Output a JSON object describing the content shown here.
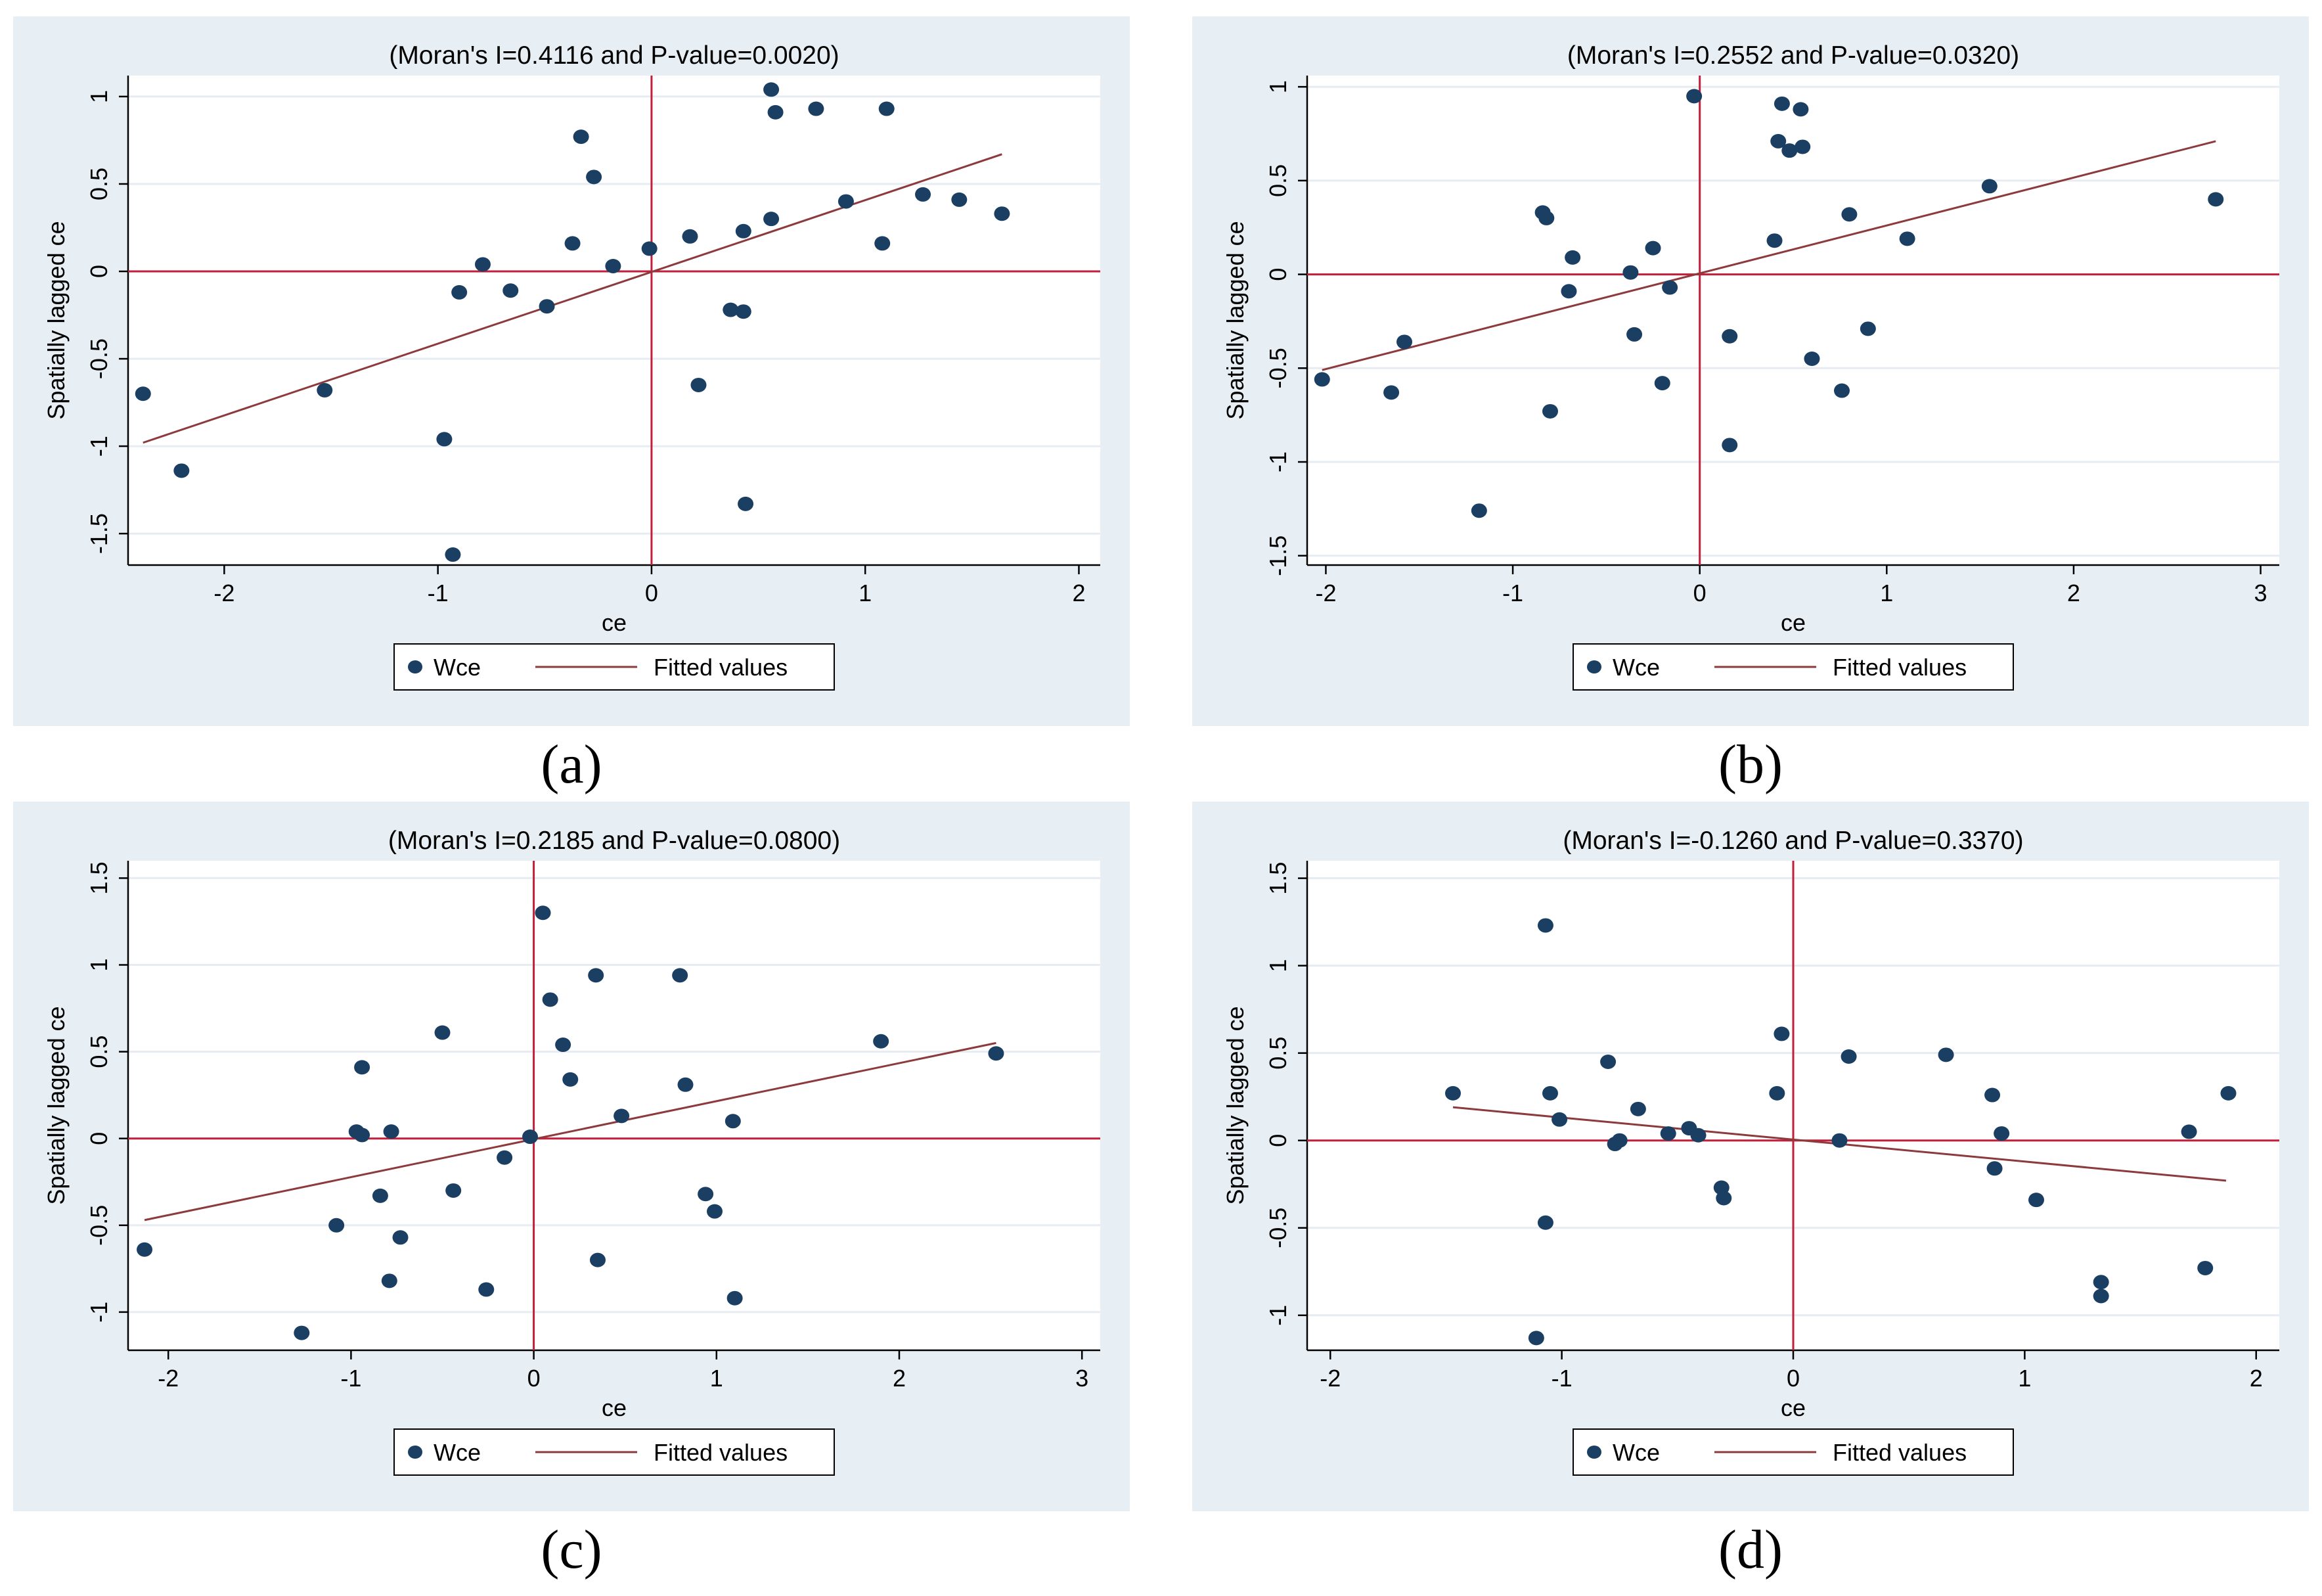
{
  "chart_data": [
    {
      "type": "scatter",
      "panel": "a",
      "caption": "(a)",
      "title": "(Moran's I=0.4116 and P-value=0.0020)",
      "xlabel": "ce",
      "ylabel": "Spatially lagged ce",
      "xlim": [
        -2.45,
        2.1
      ],
      "ylim": [
        -1.68,
        1.12
      ],
      "xticks": [
        -2,
        -1,
        0,
        1,
        2
      ],
      "xtick_labels": [
        "-2",
        "-1",
        "0",
        "1",
        "2"
      ],
      "yticks": [
        -1.5,
        -1,
        -0.5,
        0,
        0.5,
        1
      ],
      "ytick_labels": [
        "-1.5",
        "-1",
        "-0.5",
        "0",
        "0.5",
        "1"
      ],
      "legend": [
        "Wce",
        "Fitted values"
      ],
      "fit_line": {
        "x": [
          -2.38,
          1.64
        ],
        "y": [
          -0.98,
          0.67
        ]
      },
      "points": [
        [
          -2.38,
          -0.7
        ],
        [
          -2.2,
          -1.14
        ],
        [
          -1.53,
          -0.68
        ],
        [
          -0.97,
          -0.96
        ],
        [
          -0.93,
          -1.62
        ],
        [
          -0.9,
          -0.12
        ],
        [
          -0.79,
          0.04
        ],
        [
          -0.66,
          -0.11
        ],
        [
          -0.49,
          -0.2
        ],
        [
          -0.37,
          0.16
        ],
        [
          -0.33,
          0.77
        ],
        [
          -0.27,
          0.54
        ],
        [
          -0.18,
          0.03
        ],
        [
          -0.01,
          0.13
        ],
        [
          0.18,
          0.2
        ],
        [
          0.22,
          -0.65
        ],
        [
          0.37,
          -0.22
        ],
        [
          0.43,
          0.23
        ],
        [
          0.43,
          -0.23
        ],
        [
          0.44,
          -1.33
        ],
        [
          0.56,
          0.3
        ],
        [
          0.56,
          1.04
        ],
        [
          0.58,
          0.91
        ],
        [
          0.77,
          0.93
        ],
        [
          0.91,
          0.4
        ],
        [
          1.08,
          0.16
        ],
        [
          1.1,
          0.93
        ],
        [
          1.27,
          0.44
        ],
        [
          1.44,
          0.41
        ],
        [
          1.64,
          0.33
        ]
      ]
    },
    {
      "type": "scatter",
      "panel": "b",
      "caption": "(b)",
      "title": "(Moran's I=0.2552 and P-value=0.0320)",
      "xlabel": "ce",
      "ylabel": "Spatially lagged ce",
      "xlim": [
        -2.1,
        3.1
      ],
      "ylim": [
        -1.55,
        1.06
      ],
      "xticks": [
        -2,
        -1,
        0,
        1,
        2,
        3
      ],
      "xtick_labels": [
        "-2",
        "-1",
        "0",
        "1",
        "2",
        "3"
      ],
      "yticks": [
        -1.5,
        -1,
        -0.5,
        0,
        0.5,
        1
      ],
      "ytick_labels": [
        "-1.5",
        "-1",
        "-0.5",
        "0",
        "0.5",
        "1"
      ],
      "legend": [
        "Wce",
        "Fitted values"
      ],
      "fit_line": {
        "x": [
          -2.02,
          2.76
        ],
        "y": [
          -0.51,
          0.71
        ]
      },
      "points": [
        [
          -2.02,
          -0.56
        ],
        [
          -1.65,
          -0.63
        ],
        [
          -1.58,
          -0.36
        ],
        [
          -1.18,
          -1.26
        ],
        [
          -0.84,
          0.33
        ],
        [
          -0.82,
          0.3
        ],
        [
          -0.8,
          -0.73
        ],
        [
          -0.7,
          -0.09
        ],
        [
          -0.68,
          0.09
        ],
        [
          -0.37,
          0.01
        ],
        [
          -0.35,
          -0.32
        ],
        [
          -0.25,
          0.14
        ],
        [
          -0.2,
          -0.58
        ],
        [
          -0.16,
          -0.07
        ],
        [
          -0.03,
          0.95
        ],
        [
          0.16,
          -0.33
        ],
        [
          0.16,
          -0.91
        ],
        [
          0.4,
          0.18
        ],
        [
          0.42,
          0.71
        ],
        [
          0.44,
          0.91
        ],
        [
          0.48,
          0.66
        ],
        [
          0.54,
          0.88
        ],
        [
          0.55,
          0.68
        ],
        [
          0.6,
          -0.45
        ],
        [
          0.76,
          -0.62
        ],
        [
          0.8,
          0.32
        ],
        [
          0.9,
          -0.29
        ],
        [
          1.11,
          0.19
        ],
        [
          1.55,
          0.47
        ],
        [
          2.76,
          0.4
        ]
      ]
    },
    {
      "type": "scatter",
      "panel": "c",
      "caption": "(c)",
      "title": "(Moran's I=0.2185 and P-value=0.0800)",
      "xlabel": "ce",
      "ylabel": "Spatially lagged ce",
      "xlim": [
        -2.22,
        3.1
      ],
      "ylim": [
        -1.22,
        1.6
      ],
      "xticks": [
        -2,
        -1,
        0,
        1,
        2,
        3
      ],
      "xtick_labels": [
        "-2",
        "-1",
        "0",
        "1",
        "2",
        "3"
      ],
      "yticks": [
        -1,
        -0.5,
        0,
        0.5,
        1,
        1.5
      ],
      "ytick_labels": [
        "-1",
        "-0.5",
        "0",
        "0.5",
        "1",
        "1.5"
      ],
      "legend": [
        "Wce",
        "Fitted values"
      ],
      "fit_line": {
        "x": [
          -2.13,
          2.53
        ],
        "y": [
          -0.47,
          0.55
        ]
      },
      "points": [
        [
          -2.13,
          -0.64
        ],
        [
          -1.27,
          -1.12
        ],
        [
          -1.08,
          -0.5
        ],
        [
          -0.97,
          0.04
        ],
        [
          -0.94,
          0.41
        ],
        [
          -0.94,
          0.02
        ],
        [
          -0.84,
          -0.33
        ],
        [
          -0.79,
          -0.82
        ],
        [
          -0.78,
          0.04
        ],
        [
          -0.73,
          -0.57
        ],
        [
          -0.5,
          0.61
        ],
        [
          -0.44,
          -0.3
        ],
        [
          -0.26,
          -0.87
        ],
        [
          -0.16,
          -0.11
        ],
        [
          -0.02,
          0.01
        ],
        [
          0.05,
          1.3
        ],
        [
          0.09,
          0.8
        ],
        [
          0.16,
          0.54
        ],
        [
          0.2,
          0.34
        ],
        [
          0.34,
          0.94
        ],
        [
          0.35,
          -0.7
        ],
        [
          0.48,
          0.13
        ],
        [
          0.8,
          0.94
        ],
        [
          0.83,
          0.31
        ],
        [
          0.94,
          -0.32
        ],
        [
          0.99,
          -0.42
        ],
        [
          1.09,
          0.1
        ],
        [
          1.1,
          -0.92
        ],
        [
          1.9,
          0.56
        ],
        [
          2.53,
          0.49
        ]
      ]
    },
    {
      "type": "scatter",
      "panel": "d",
      "caption": "(d)",
      "title": "(Moran's I=-0.1260 and P-value=0.3370)",
      "xlabel": "ce",
      "ylabel": "Spatially lagged ce",
      "xlim": [
        -2.1,
        2.1
      ],
      "ylim": [
        -1.2,
        1.6
      ],
      "xticks": [
        -2,
        -1,
        0,
        1,
        2
      ],
      "xtick_labels": [
        "-2",
        "-1",
        "0",
        "1",
        "2"
      ],
      "yticks": [
        -1,
        -0.5,
        0,
        0.5,
        1,
        1.5
      ],
      "ytick_labels": [
        "-1",
        "-0.5",
        "0",
        "0.5",
        "1",
        "1.5"
      ],
      "legend": [
        "Wce",
        "Fitted values"
      ],
      "fit_line": {
        "x": [
          -1.47,
          1.87
        ],
        "y": [
          0.19,
          -0.23
        ]
      },
      "points": [
        [
          -1.47,
          0.27
        ],
        [
          -1.11,
          -1.13
        ],
        [
          -1.07,
          1.23
        ],
        [
          -1.07,
          -0.47
        ],
        [
          -1.05,
          0.27
        ],
        [
          -1.01,
          0.12
        ],
        [
          -0.8,
          0.45
        ],
        [
          -0.77,
          -0.02
        ],
        [
          -0.75,
          0.0
        ],
        [
          -0.67,
          0.18
        ],
        [
          -0.54,
          0.04
        ],
        [
          -0.45,
          0.07
        ],
        [
          -0.41,
          0.03
        ],
        [
          -0.31,
          -0.27
        ],
        [
          -0.3,
          -0.33
        ],
        [
          -0.07,
          0.27
        ],
        [
          -0.05,
          0.61
        ],
        [
          0.2,
          0.0
        ],
        [
          0.24,
          0.48
        ],
        [
          0.66,
          0.49
        ],
        [
          0.86,
          0.26
        ],
        [
          0.87,
          -0.16
        ],
        [
          0.9,
          0.04
        ],
        [
          1.05,
          -0.34
        ],
        [
          1.33,
          -0.81
        ],
        [
          1.33,
          -0.89
        ],
        [
          1.71,
          0.05
        ],
        [
          1.78,
          -0.73
        ],
        [
          1.88,
          0.27
        ]
      ]
    }
  ],
  "colors": {
    "panel_bg": "#e8eff4",
    "plot_bg": "#ffffff",
    "grid": "#e6ecf1",
    "marker": "#1b3f63",
    "fit_line": "#8d3a3c",
    "ref_line": "#c31e3a",
    "frame_red": "#c6323a"
  }
}
